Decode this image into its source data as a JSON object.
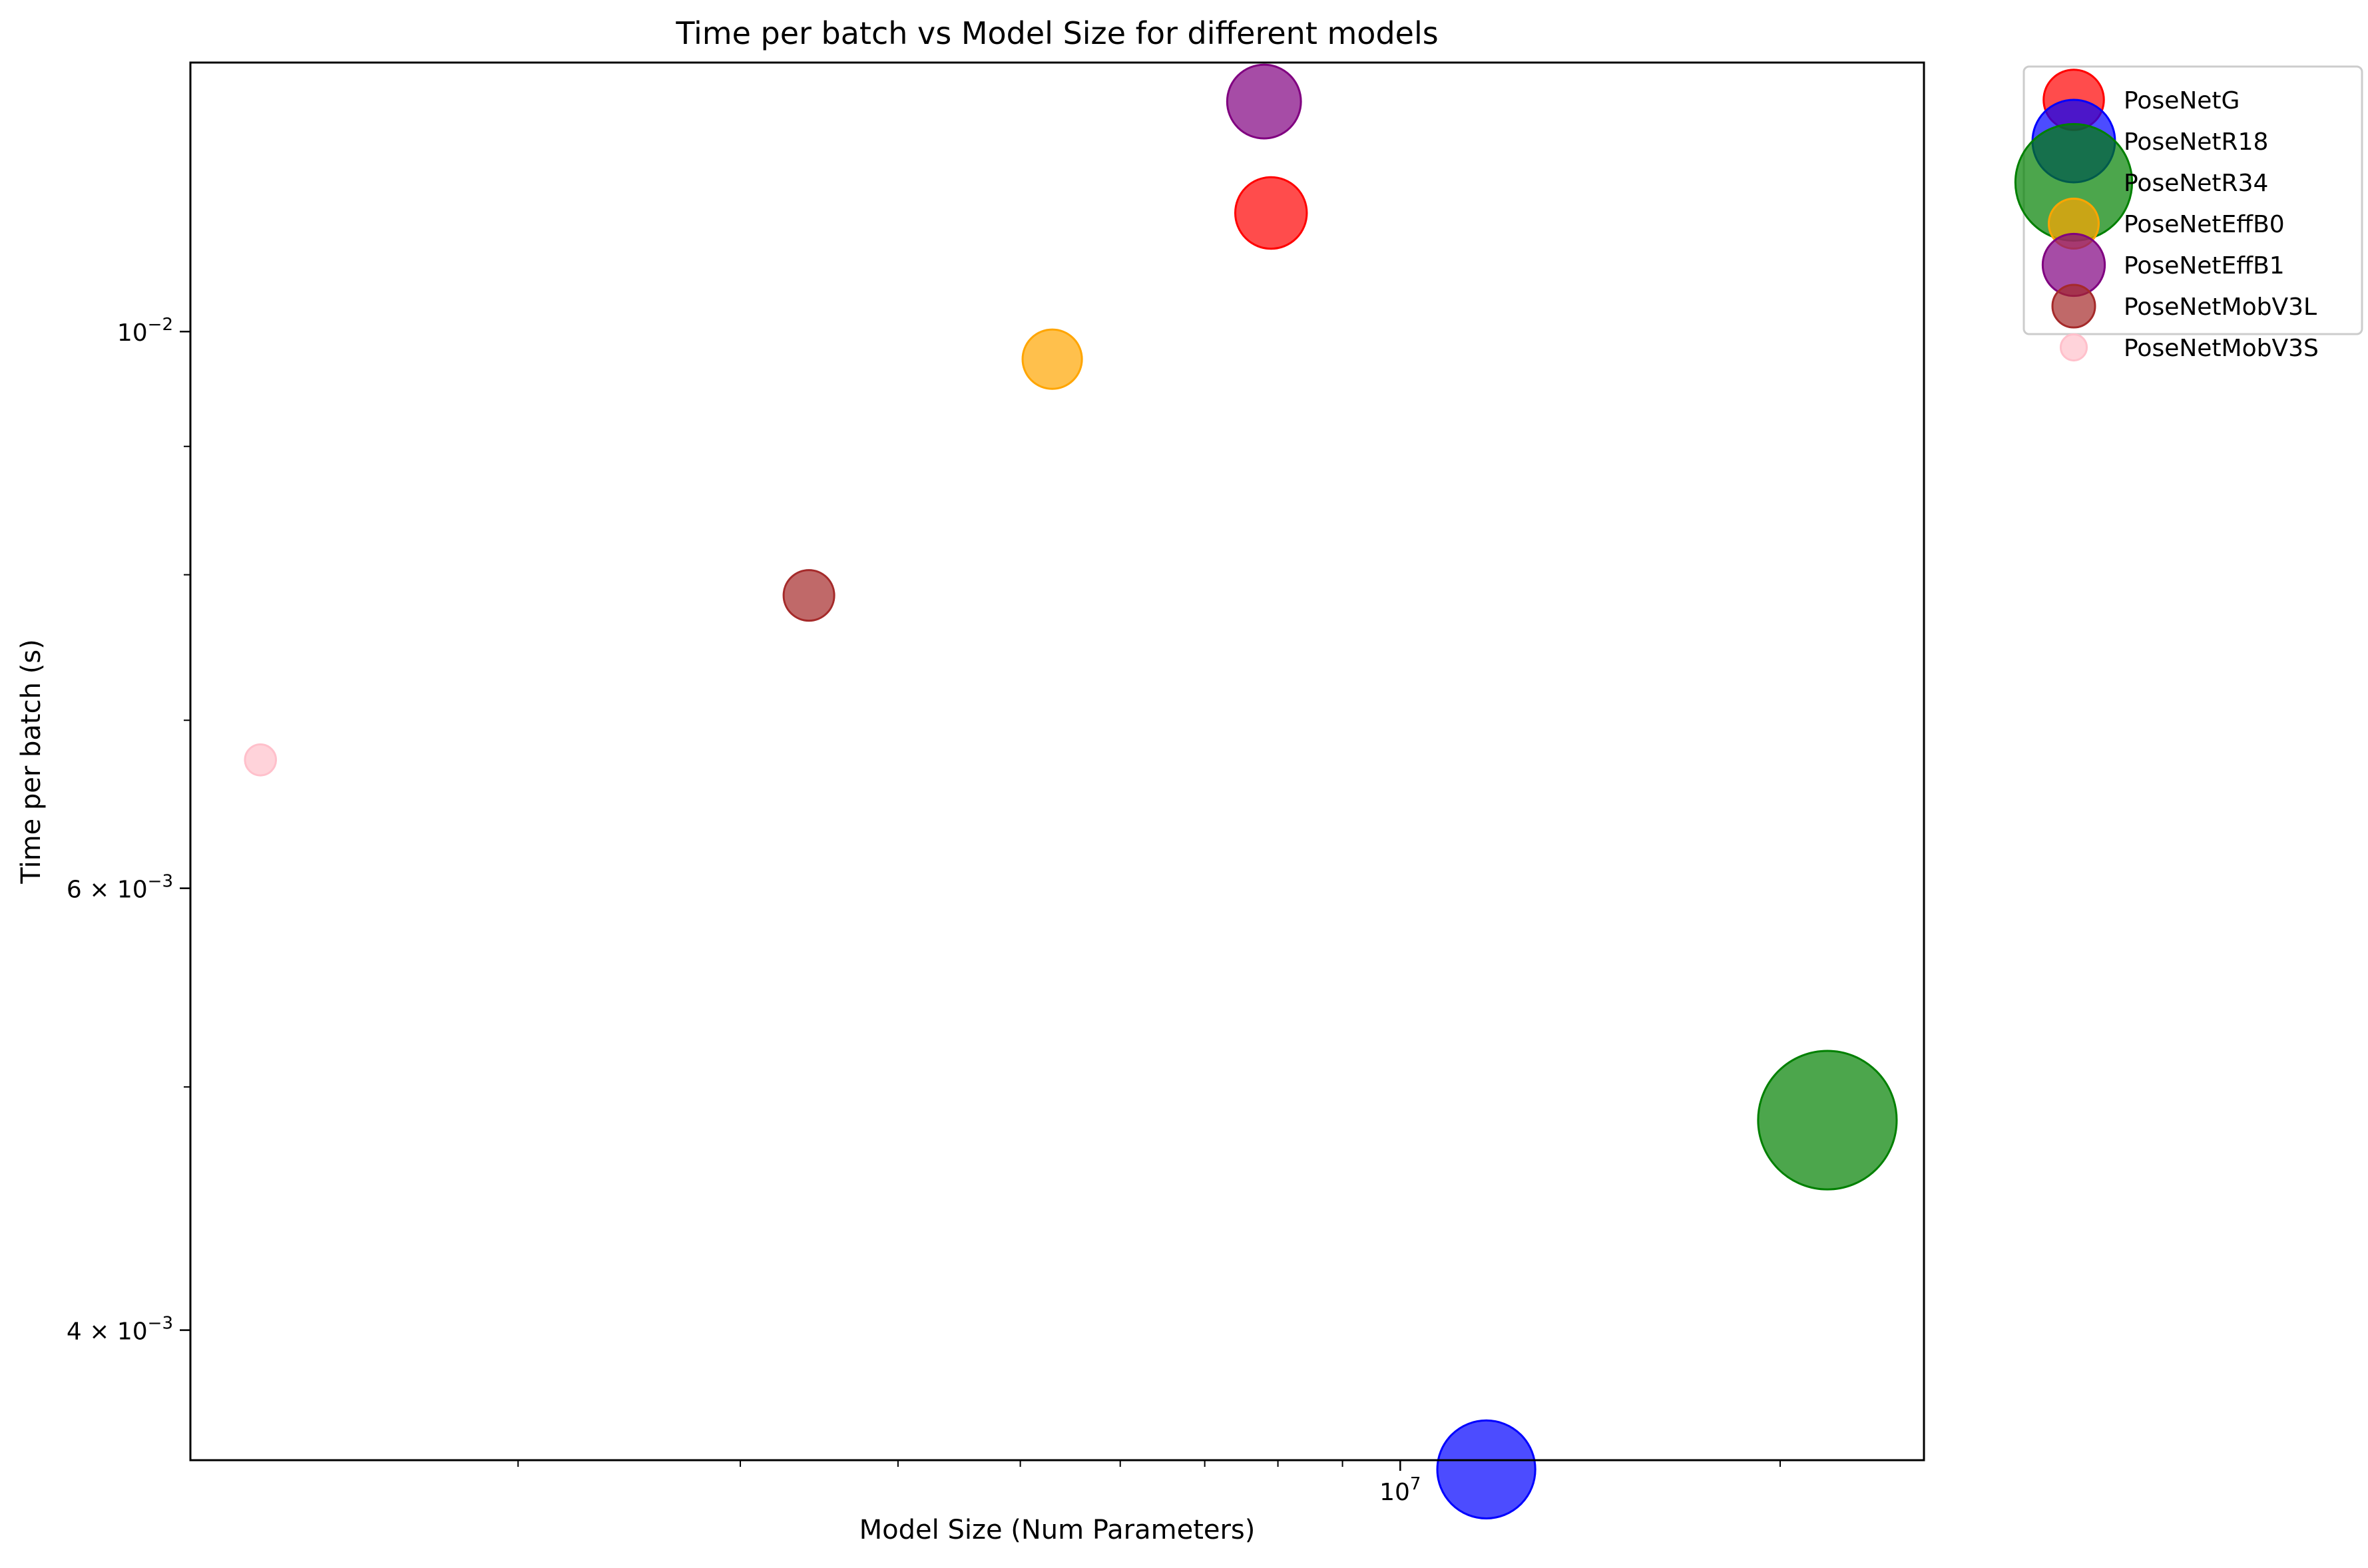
{
  "chart_data": {
    "type": "scatter",
    "title": "Time per batch vs Model Size for different models",
    "xlabel": "Model Size (Num Parameters)",
    "ylabel": "Time per batch (s)",
    "xscale": "log",
    "yscale": "log",
    "xlim": [
      1100000,
      26000000
    ],
    "ylim": [
      0.00355,
      0.0128
    ],
    "grid": false,
    "legend_position": "outside-top-right",
    "x_tick_labels": [
      {
        "base": "10",
        "exp": "7",
        "value": 10000000
      }
    ],
    "y_tick_labels": [
      {
        "mantissa": "",
        "base": "10",
        "exp": "−2",
        "value": 0.01
      },
      {
        "mantissa": "6 × ",
        "base": "10",
        "exp": "−3",
        "value": 0.006
      },
      {
        "mantissa": "4 × ",
        "base": "10",
        "exp": "−3",
        "value": 0.004
      }
    ],
    "series": [
      {
        "name": "PoseNetG",
        "color": "#ff0000",
        "x": 7900000,
        "y": 0.01115,
        "marker_size": 800
      },
      {
        "name": "PoseNetR18",
        "color": "#0000ff",
        "x": 11700000,
        "y": 0.00352,
        "marker_size": 1500
      },
      {
        "name": "PoseNetR34",
        "color": "#008000",
        "x": 21800000,
        "y": 0.00485,
        "marker_size": 3000
      },
      {
        "name": "PoseNetEffB0",
        "color": "#ffa500",
        "x": 5300000,
        "y": 0.00975,
        "marker_size": 550
      },
      {
        "name": "PoseNetEffB1",
        "color": "#800080",
        "x": 7800000,
        "y": 0.01235,
        "marker_size": 850
      },
      {
        "name": "PoseNetMobV3L",
        "color": "#a52a2a",
        "x": 3400000,
        "y": 0.00785,
        "marker_size": 400
      },
      {
        "name": "PoseNetMobV3S",
        "color": "#ffc0cb",
        "x": 1250000,
        "y": 0.00675,
        "marker_size": 150
      }
    ]
  }
}
